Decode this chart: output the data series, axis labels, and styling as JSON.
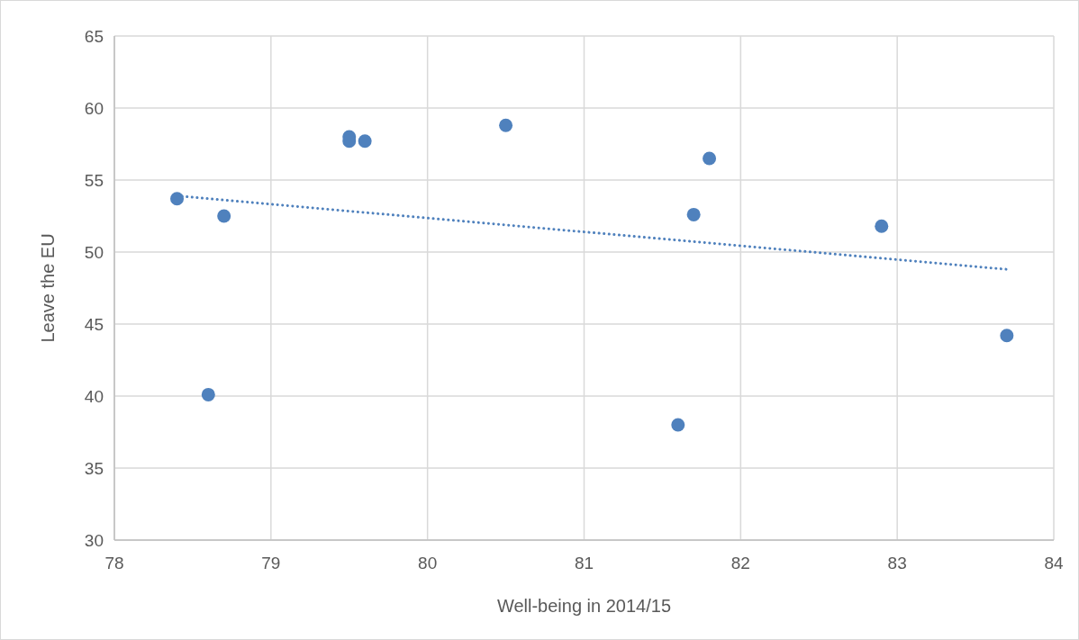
{
  "chart_data": {
    "type": "scatter",
    "xlabel": "Well-being in 2014/15",
    "ylabel": "Leave the EU",
    "xlim": [
      78,
      84
    ],
    "xticks": [
      78,
      79,
      80,
      81,
      82,
      83,
      84
    ],
    "ylim": [
      30,
      65
    ],
    "yticks": [
      30,
      35,
      40,
      45,
      50,
      55,
      60,
      65
    ],
    "grid": true,
    "series": [
      {
        "color": "#4f81bd",
        "marker": "circle",
        "x": [
          78.4,
          78.7,
          78.6,
          79.5,
          79.5,
          79.6,
          80.5,
          81.8,
          81.7,
          81.6,
          82.9,
          83.7
        ],
        "values": [
          53.7,
          52.5,
          40.1,
          58.0,
          57.7,
          57.7,
          58.8,
          56.5,
          52.6,
          38.0,
          51.8,
          44.2
        ]
      },
      {
        "type": "line",
        "color": "#4f81bd",
        "line_style": "dotted",
        "marker": "none",
        "x": [
          78.4,
          83.7
        ],
        "values": [
          53.9,
          48.8
        ]
      }
    ]
  }
}
